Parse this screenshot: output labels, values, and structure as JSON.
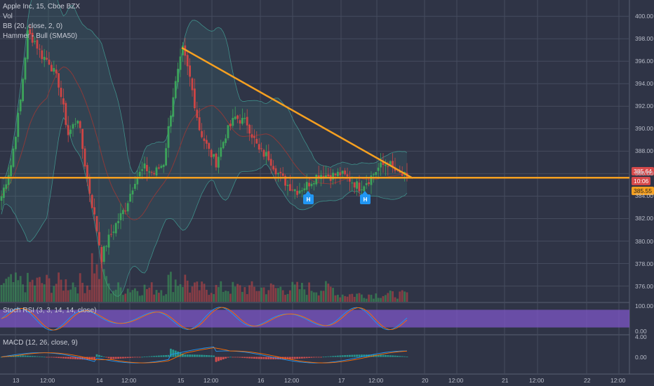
{
  "header": {
    "symbol_line": "Apple Inc, 15, Cboe BZX",
    "vol_label": "Vol",
    "bb_label": "BB (20, close, 2, 0)",
    "hammer_label": "Hammer - Bull (SMA50)"
  },
  "panes": {
    "stoch_label": "Stoch RSI (3, 3, 14, 14, close)",
    "macd_label": "MACD (12, 26, close, 9)"
  },
  "markers": {
    "h1": "H",
    "h2": "H"
  },
  "price_tags": {
    "last": "385.64",
    "countdown": "10:06",
    "level": "385.55"
  },
  "colors": {
    "background": "#2f3446",
    "grid": "#454b5e",
    "up": "#3ca35a",
    "down": "#cd4545",
    "trendline": "#f6a020",
    "bb_band": "#3f8f8a",
    "sma": "#8a3a3a",
    "stoch_band": "#7d55c7",
    "macd_line": "#2196f3",
    "signal_line": "#ff6d00"
  },
  "chart_data": [
    {
      "type": "candlestick",
      "title": "Apple Inc, 15, Cboe BZX",
      "x_tick_labels": [
        "13",
        "12:00",
        "14",
        "12:00",
        "15",
        "12:00",
        "16",
        "12:00",
        "17",
        "12:00",
        "20",
        "12:00",
        "21",
        "12:00",
        "22",
        "12:00"
      ],
      "y_tick_labels": [
        "376.00",
        "378.00",
        "380.00",
        "382.00",
        "384.00",
        "386.00",
        "388.00",
        "390.00",
        "392.00",
        "394.00",
        "396.00",
        "398.00",
        "400.00"
      ],
      "ylim": [
        374.6,
        401.2
      ],
      "anchors": [
        [
          0,
          384.0
        ],
        [
          4,
          386.8
        ],
        [
          8,
          392.5
        ],
        [
          11,
          398.5
        ],
        [
          14,
          397.8
        ],
        [
          17,
          396.5
        ],
        [
          20,
          396.0
        ],
        [
          24,
          394.0
        ],
        [
          28,
          389.5
        ],
        [
          32,
          391.0
        ],
        [
          36,
          385.5
        ],
        [
          40,
          381.0
        ],
        [
          42,
          378.5
        ],
        [
          44,
          379.8
        ],
        [
          48,
          381.5
        ],
        [
          52,
          383.0
        ],
        [
          56,
          385.5
        ],
        [
          60,
          386.5
        ],
        [
          64,
          386.0
        ],
        [
          68,
          387.0
        ],
        [
          72,
          393.0
        ],
        [
          76,
          397.0
        ],
        [
          79,
          394.5
        ],
        [
          83,
          390.0
        ],
        [
          87,
          388.0
        ],
        [
          90,
          387.0
        ],
        [
          94,
          389.5
        ],
        [
          98,
          391.0
        ],
        [
          103,
          390.5
        ],
        [
          108,
          388.0
        ],
        [
          112,
          387.5
        ],
        [
          116,
          386.0
        ],
        [
          120,
          385.0
        ],
        [
          124,
          384.5
        ],
        [
          128,
          385.0
        ],
        [
          133,
          386.0
        ],
        [
          138,
          385.8
        ],
        [
          142,
          386.0
        ],
        [
          146,
          385.5
        ],
        [
          150,
          384.8
        ],
        [
          154,
          385.5
        ],
        [
          158,
          386.5
        ],
        [
          162,
          387.0
        ],
        [
          166,
          386.0
        ],
        [
          170,
          385.64
        ]
      ],
      "annotations": [
        "descending trendline from 397.2 to 385.6",
        "horizontal support 385.55"
      ],
      "hammer_markers": 2
    },
    {
      "type": "bar",
      "title": "Vol",
      "note": "volume histogram, values not labeled"
    },
    {
      "type": "line",
      "title": "Stoch RSI (3, 3, 14, 14, close)",
      "y_tick_labels": [
        "100.00",
        "0.00"
      ],
      "ylim": [
        0,
        100
      ],
      "band": [
        20,
        80
      ]
    },
    {
      "type": "bar",
      "title": "MACD (12, 26, close, 9)",
      "y_tick_labels": [
        "4.00",
        "0.00"
      ],
      "ylim": [
        -3,
        4
      ]
    }
  ]
}
